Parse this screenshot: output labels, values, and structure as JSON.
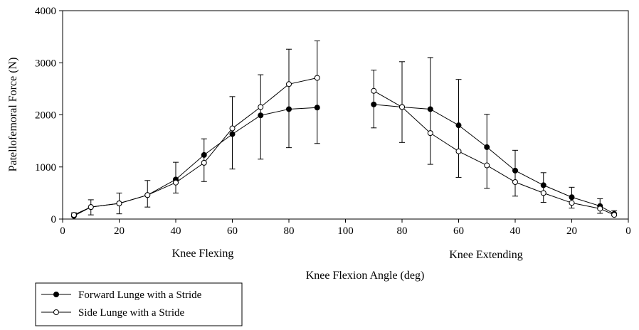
{
  "chart_data": {
    "type": "line",
    "ylabel": "Patellofemoral Force (N)",
    "xlabel": "Knee Flexion Angle (deg)",
    "ylim": [
      0,
      4000
    ],
    "yticks": [
      "0",
      "1000",
      "2000",
      "3000",
      "4000"
    ],
    "xticks": [
      "0",
      "20",
      "40",
      "60",
      "80",
      "100",
      "80",
      "60",
      "40",
      "20",
      "0"
    ],
    "phase_labels": {
      "flexing": "Knee Flexing",
      "extending": "Knee Extending"
    },
    "x_positions": {
      "flexing": [
        4,
        10,
        20,
        30,
        40,
        50,
        60,
        70,
        80,
        90
      ],
      "extending": [
        110,
        120,
        130,
        140,
        150,
        160,
        170,
        180,
        190,
        195
      ]
    },
    "series": [
      {
        "name": "Forward Lunge with a Stride",
        "marker": "filled",
        "flexing": {
          "angle": [
            5,
            10,
            20,
            30,
            40,
            50,
            60,
            70,
            80,
            90
          ],
          "mean": [
            60,
            230,
            300,
            460,
            760,
            1230,
            1630,
            1990,
            2110,
            2140
          ],
          "err_high": [
            120,
            370,
            500,
            740,
            1090,
            1540,
            2350,
            2770,
            3260,
            3420
          ],
          "err_low": [
            0,
            80,
            100,
            230,
            500,
            720,
            960,
            1150,
            1370,
            1450
          ]
        },
        "extending": {
          "angle": [
            90,
            80,
            70,
            60,
            50,
            40,
            30,
            20,
            10,
            5
          ],
          "mean": [
            2200,
            2150,
            2110,
            1800,
            1380,
            930,
            650,
            420,
            250,
            100
          ],
          "err_high": [
            2860,
            3020,
            3100,
            2680,
            2010,
            1320,
            890,
            610,
            390,
            160
          ],
          "err_low": [
            1750,
            1470,
            1050,
            800,
            590,
            440,
            320,
            210,
            110,
            60
          ]
        }
      },
      {
        "name": "Side Lunge with a Stride",
        "marker": "open",
        "flexing": {
          "angle": [
            5,
            10,
            20,
            30,
            40,
            50,
            60,
            70,
            80,
            90
          ],
          "mean": [
            80,
            230,
            300,
            460,
            700,
            1080,
            1740,
            2150,
            2590,
            2710
          ]
        },
        "extending": {
          "angle": [
            90,
            80,
            70,
            60,
            50,
            40,
            30,
            20,
            10,
            5
          ],
          "mean": [
            2460,
            2150,
            1650,
            1300,
            1030,
            710,
            500,
            310,
            200,
            80
          ]
        }
      }
    ],
    "legend": {
      "position": "bottom-left",
      "entries": [
        "Forward Lunge with a Stride",
        "Side Lunge with a Stride"
      ]
    }
  }
}
